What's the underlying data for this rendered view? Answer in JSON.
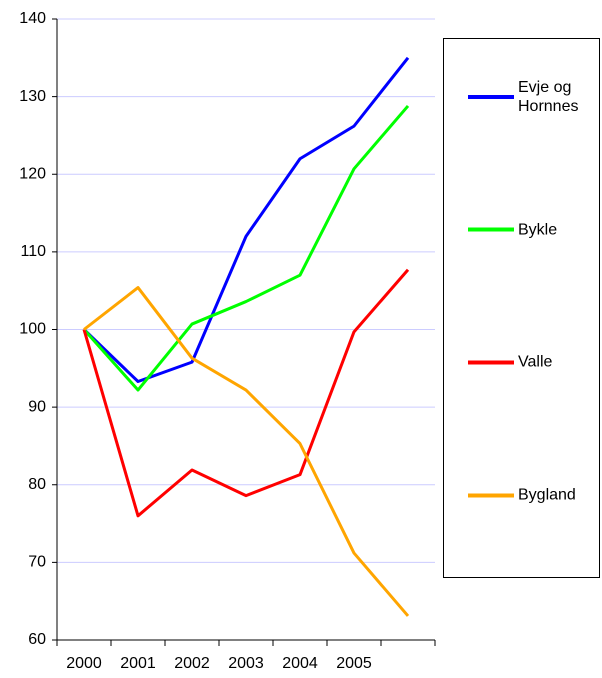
{
  "chart_data": {
    "type": "line",
    "categories": [
      "2000",
      "2001",
      "2002",
      "2003",
      "2004",
      "2005",
      null
    ],
    "series": [
      {
        "name": "Evje og Hornnes",
        "color": "#0000ff",
        "values": [
          100,
          93.3,
          95.8,
          112,
          122,
          126.2,
          135
        ]
      },
      {
        "name": "Bykle",
        "color": "#00ff00",
        "values": [
          100,
          92.2,
          100.7,
          103.6,
          107,
          120.7,
          128.8
        ]
      },
      {
        "name": "Valle",
        "color": "#ff0000",
        "values": [
          100,
          76,
          81.9,
          78.6,
          81.3,
          99.7,
          107.7
        ]
      },
      {
        "name": "Bygland",
        "color": "#ffa500",
        "values": [
          100,
          105.4,
          96.3,
          92.2,
          85.3,
          71.2,
          63.1
        ]
      }
    ],
    "ylim": [
      60,
      140
    ],
    "yticks": [
      60,
      70,
      80,
      90,
      100,
      110,
      120,
      130,
      140
    ],
    "grid": true,
    "legend": "right"
  }
}
